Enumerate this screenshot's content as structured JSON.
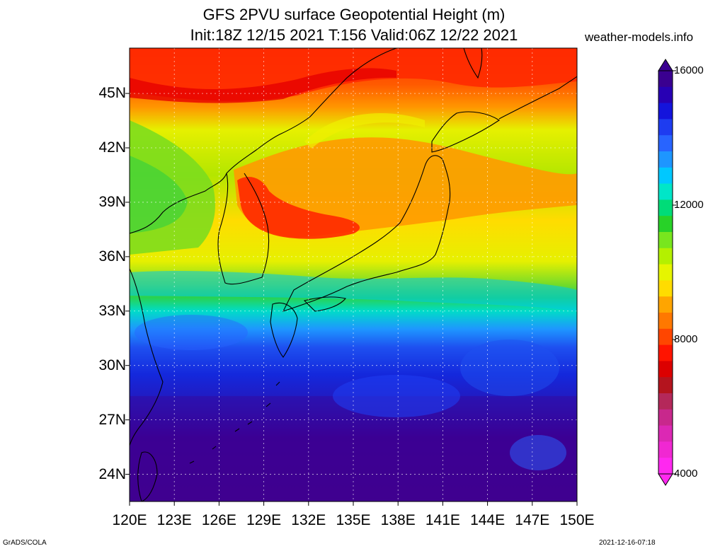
{
  "header": {
    "title_line1": "GFS 2PVU surface Geopotential Height (m)",
    "title_line2": "Init:18Z 12/15 2021 T:156 Valid:06Z 12/22 2021",
    "site": "weather-models.info"
  },
  "map": {
    "lat_labels": [
      "45N",
      "42N",
      "39N",
      "36N",
      "33N",
      "30N",
      "27N",
      "24N"
    ],
    "lon_labels": [
      "120E",
      "123E",
      "126E",
      "129E",
      "132E",
      "135E",
      "138E",
      "141E",
      "144E",
      "147E",
      "150E"
    ],
    "lat_range": [
      22.5,
      47.5
    ],
    "lon_range": [
      120,
      150
    ],
    "grid": true
  },
  "colorbar": {
    "ticks": [
      "16000",
      "12000",
      "8000",
      "4000"
    ],
    "range": [
      4000,
      16000
    ],
    "colors": [
      "#3a0090",
      "#2800b4",
      "#1414dc",
      "#1e3cf0",
      "#2864ff",
      "#1e96ff",
      "#00c8ff",
      "#00e6c8",
      "#00dc78",
      "#28d228",
      "#78e61e",
      "#b4f000",
      "#e6f500",
      "#ffdc00",
      "#ffa500",
      "#ff7800",
      "#ff4600",
      "#ff1400",
      "#dc0000",
      "#b4141e",
      "#b4285a",
      "#c8288c",
      "#dc28b4",
      "#f028d2",
      "#ff28f0"
    ]
  },
  "footer": {
    "credit": "GrADS/COLA",
    "timestamp": "2021-12-16-07:18"
  }
}
